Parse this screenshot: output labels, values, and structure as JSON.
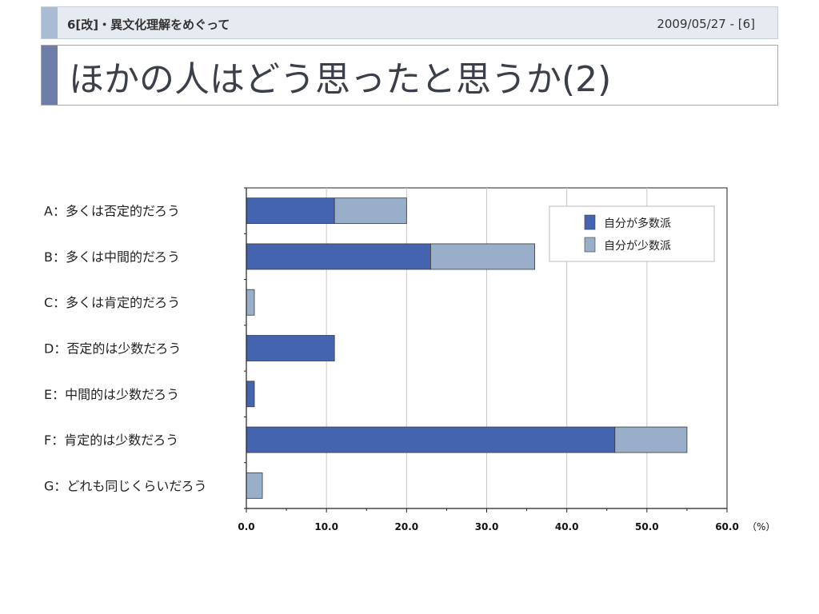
{
  "header": {
    "title": "6[改]・異文化理解をめぐって",
    "date": "2009/05/27 - [6]"
  },
  "slide": {
    "title": "ほかの人はどう思ったと思うか(2)"
  },
  "colors": {
    "majority": "#4464b0",
    "minority": "#98aec9",
    "grid": "#c8c8c8"
  },
  "chart_data": {
    "type": "bar",
    "orientation": "horizontal",
    "stacked": true,
    "categories": [
      "A：多くは否定的だろう",
      "B：多くは中間的だろう",
      "C：多くは肯定的だろう",
      "D：否定的は少数だろう",
      "E：中間的は少数だろう",
      "F：肯定的は少数だろう",
      "G：どれも同じくらいだろう"
    ],
    "series": [
      {
        "name": "自分が多数派",
        "values": [
          11,
          23,
          0,
          11,
          1,
          46,
          0
        ]
      },
      {
        "name": "自分が少数派",
        "values": [
          9,
          13,
          1,
          0,
          0,
          9,
          2
        ]
      }
    ],
    "xlim": [
      0,
      60
    ],
    "xticks": [
      "0.0",
      "10.0",
      "20.0",
      "30.0",
      "40.0",
      "50.0",
      "60.0"
    ],
    "x_unit": "（%）",
    "grid": true,
    "legend_position": "top-right"
  }
}
